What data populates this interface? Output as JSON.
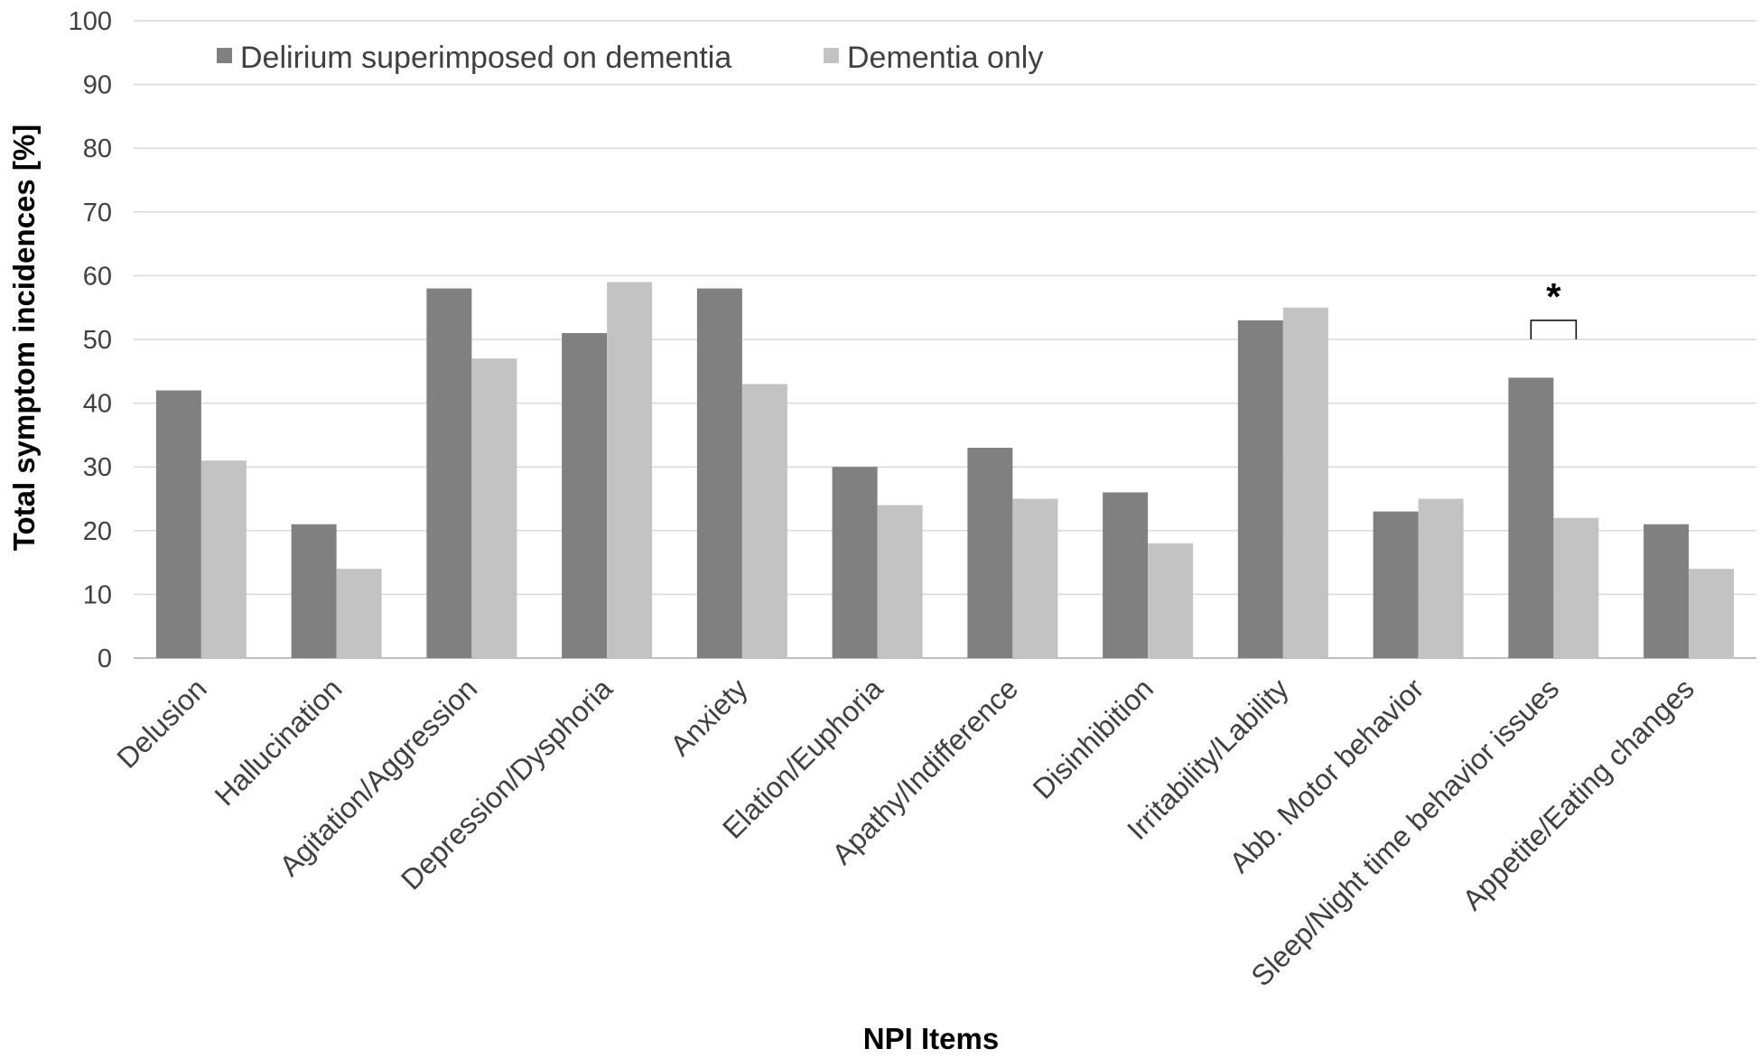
{
  "chart_data": {
    "type": "bar",
    "title": "",
    "xlabel": "NPI Items",
    "ylabel": "Total symptom incidences [%]",
    "ylim": [
      0,
      100
    ],
    "yticks": [
      "0",
      "10",
      "20",
      "30",
      "40",
      "50",
      "60",
      "70",
      "80",
      "90",
      "100"
    ],
    "grid": true,
    "legend_position": "top-left",
    "categories": [
      "Delusion",
      "Hallucination",
      "Agitation/Aggression",
      "Depression/Dysphoria",
      "Anxiety",
      "Elation/Euphoria",
      "Apathy/Indifference",
      "Disinhibition",
      "Irritability/Lability",
      "Abb. Motor behavior",
      "Sleep/Night time behavior issues",
      "Appetite/Eating changes"
    ],
    "series": [
      {
        "name": "Delirium superimposed on dementia",
        "color": "#808080",
        "values": [
          42,
          21,
          58,
          51,
          58,
          30,
          33,
          26,
          53,
          23,
          44,
          21
        ]
      },
      {
        "name": "Dementia only",
        "color": "#c3c3c3",
        "values": [
          31,
          14,
          47,
          59,
          43,
          24,
          25,
          18,
          55,
          25,
          22,
          14
        ]
      }
    ],
    "annotations": [
      {
        "text": "*",
        "category": "Sleep/Night time behavior issues",
        "type": "significance-bracket",
        "bracket_top": 53,
        "bracket_bottom": 50
      }
    ],
    "colors": {
      "grid": "#d9d9d9",
      "axis": "#bfbfbf",
      "text": "#404040"
    }
  }
}
